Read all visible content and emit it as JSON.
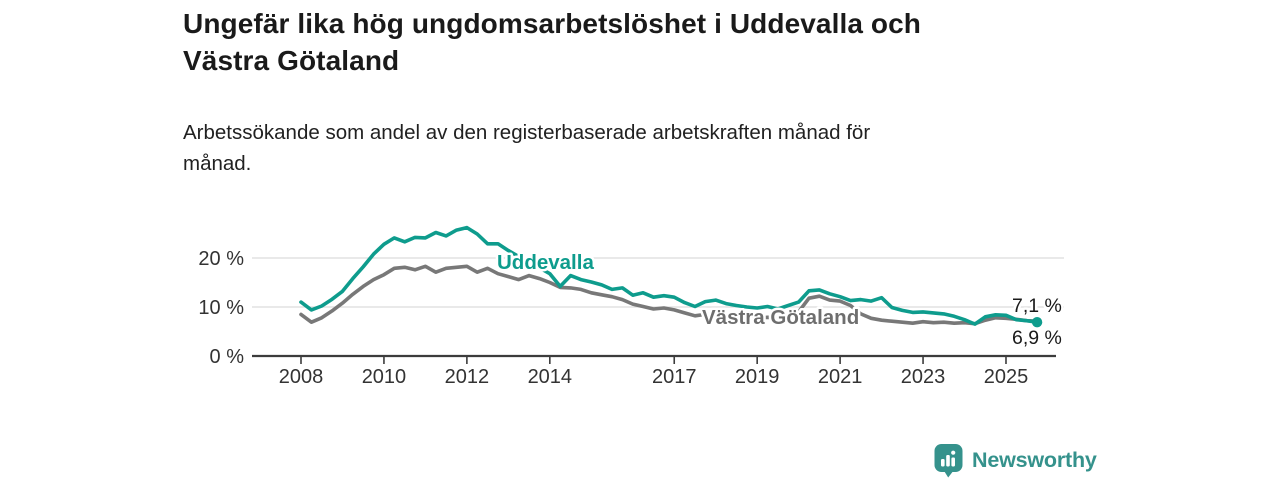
{
  "header": {
    "title_line1": "Ungefär lika hög ungdomsarbetslöshet i Uddevalla och",
    "title_line2": "Västra Götaland",
    "subtitle_line1": "Arbetssökande som andel av den registerbaserade arbetskraften månad för",
    "subtitle_line2": "månad."
  },
  "chart_data": {
    "type": "line",
    "title": "Ungefär lika hög ungdomsarbetslöshet i Uddevalla och Västra Götaland",
    "subtitle": "Arbetssökande som andel av den registerbaserade arbetskraften månad för månad.",
    "y_unit": "%",
    "ylim": [
      0,
      28
    ],
    "xlim": [
      2006.8,
      2026.3
    ],
    "grid": "horizontal",
    "legend_position": "inline-labels",
    "x_ticks": [
      2008,
      2010,
      2012,
      2014,
      2017,
      2019,
      2021,
      2023,
      2025
    ],
    "x_tick_labels": [
      "2008",
      "2010",
      "2012",
      "2014",
      "2017",
      "2019",
      "2021",
      "2023",
      "2025"
    ],
    "y_ticks": [
      0,
      10,
      20
    ],
    "y_tick_labels": [
      "0 %",
      "10 %",
      "20 %"
    ],
    "x": [
      2008.0,
      2008.25,
      2008.5,
      2008.75,
      2009.0,
      2009.25,
      2009.5,
      2009.75,
      2010.0,
      2010.25,
      2010.5,
      2010.75,
      2011.0,
      2011.25,
      2011.5,
      2011.75,
      2012.0,
      2012.25,
      2012.5,
      2012.75,
      2013.0,
      2013.25,
      2013.5,
      2013.75,
      2014.0,
      2014.25,
      2014.5,
      2014.75,
      2015.0,
      2015.25,
      2015.5,
      2015.75,
      2016.0,
      2016.25,
      2016.5,
      2016.75,
      2017.0,
      2017.25,
      2017.5,
      2017.75,
      2018.0,
      2018.25,
      2018.5,
      2018.75,
      2019.0,
      2019.25,
      2019.5,
      2019.75,
      2020.0,
      2020.25,
      2020.5,
      2020.75,
      2021.0,
      2021.25,
      2021.5,
      2021.75,
      2022.0,
      2022.25,
      2022.5,
      2022.75,
      2023.0,
      2023.25,
      2023.5,
      2023.75,
      2024.0,
      2024.25,
      2024.5,
      2024.75,
      2025.0,
      2025.25,
      2025.5,
      2025.75
    ],
    "series": [
      {
        "name": "Uddevalla",
        "color": "#0E9C8D",
        "end_label": "6,9 %",
        "end_value": 6.9,
        "values": [
          11.0,
          9.4,
          10.2,
          11.6,
          13.2,
          15.8,
          18.2,
          20.8,
          22.8,
          24.1,
          23.3,
          24.2,
          24.1,
          25.2,
          24.5,
          25.7,
          26.2,
          24.9,
          22.9,
          22.9,
          21.5,
          20.3,
          19.2,
          18.0,
          16.8,
          14.2,
          16.4,
          15.6,
          15.1,
          14.5,
          13.6,
          13.9,
          12.4,
          12.9,
          12.0,
          12.3,
          12.0,
          10.9,
          10.1,
          11.1,
          11.4,
          10.7,
          10.3,
          10.0,
          9.8,
          10.1,
          9.6,
          10.3,
          11.0,
          13.3,
          13.5,
          12.7,
          12.1,
          11.3,
          11.5,
          11.2,
          11.9,
          9.9,
          9.3,
          8.9,
          9.0,
          8.8,
          8.6,
          8.1,
          7.4,
          6.5,
          8.0,
          8.4,
          8.3,
          7.4,
          7.2,
          6.9
        ]
      },
      {
        "name": "Västra Götaland",
        "color": "#787878",
        "label_color": "#6E6E6E",
        "end_label": "7,1 %",
        "end_value": 7.1,
        "values": [
          8.5,
          6.9,
          7.8,
          9.2,
          10.8,
          12.6,
          14.2,
          15.6,
          16.6,
          17.9,
          18.1,
          17.6,
          18.3,
          17.1,
          17.9,
          18.1,
          18.3,
          17.1,
          17.9,
          16.8,
          16.2,
          15.6,
          16.4,
          15.8,
          15.0,
          14.0,
          13.9,
          13.6,
          12.9,
          12.5,
          12.1,
          11.5,
          10.6,
          10.1,
          9.6,
          9.8,
          9.4,
          8.8,
          8.2,
          8.5,
          8.3,
          8.1,
          7.9,
          7.8,
          7.7,
          7.9,
          7.8,
          8.2,
          9.0,
          11.8,
          12.2,
          11.4,
          11.2,
          10.3,
          8.6,
          7.7,
          7.3,
          7.1,
          6.9,
          6.7,
          7.0,
          6.8,
          6.9,
          6.7,
          6.8,
          6.6,
          7.3,
          7.8,
          7.7,
          7.5,
          7.2,
          7.1
        ]
      }
    ],
    "colors": {
      "gridline": "#DCDCDC",
      "axis": "#3C3C3C",
      "tick_text": "#333333",
      "end_label_text": "#1A1A1A"
    }
  },
  "footer": {
    "brand": "Newsworthy",
    "brand_color": "#35928C"
  }
}
